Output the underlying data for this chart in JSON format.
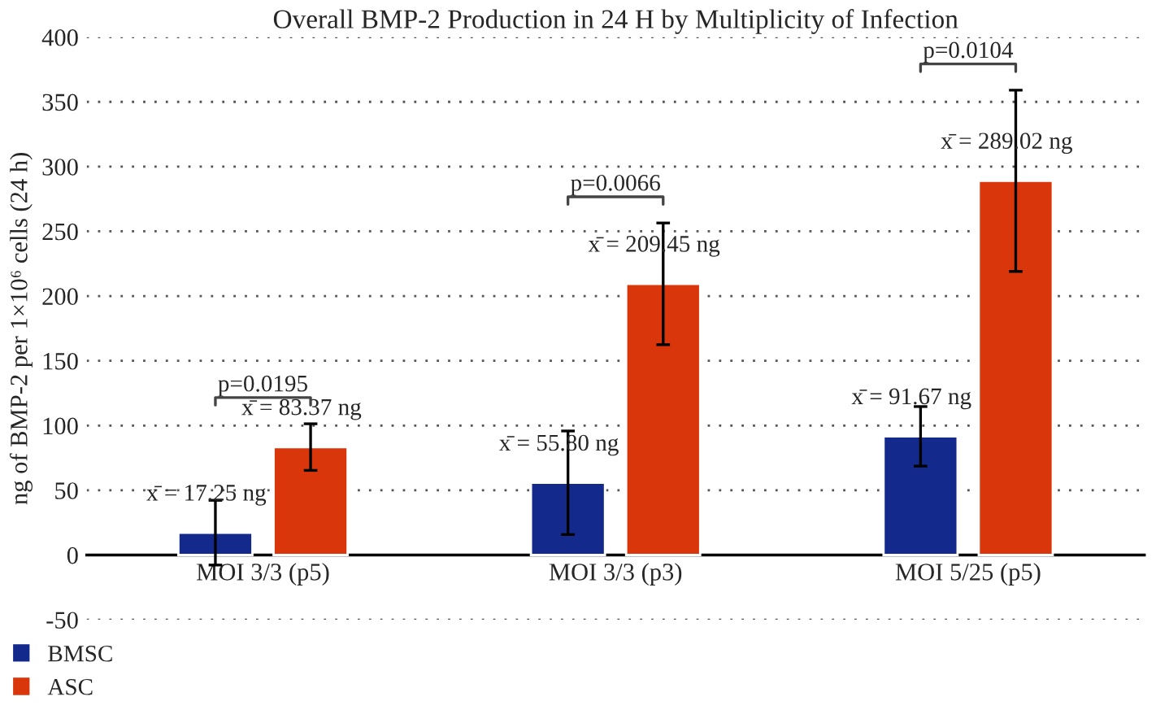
{
  "chart_data": {
    "type": "bar",
    "title": "Overall BMP-2 Production in 24 H by Multiplicity of Infection",
    "ylabel": "ng of BMP-2 per 1×10⁶ cells (24 h)",
    "categories": [
      "MOI 3/3 (p5)",
      "MOI 3/3 (p3)",
      "MOI 5/25 (p5)"
    ],
    "series": [
      {
        "name": "BMSC",
        "color": "#132a8c",
        "values": [
          17.25,
          55.8,
          91.67
        ],
        "errors": [
          25,
          40,
          23
        ],
        "value_labels": [
          "x̄ = 17.25 ng",
          "x̄ = 55.80 ng",
          "x̄ = 91.67 ng"
        ]
      },
      {
        "name": "ASC",
        "color": "#d9360b",
        "values": [
          83.37,
          209.45,
          289.02
        ],
        "errors": [
          18,
          47,
          70
        ],
        "value_labels": [
          "x̄ = 83.37 ng",
          "x̄ = 209.45 ng",
          "x̄ = 289.02 ng"
        ]
      }
    ],
    "annotations": [
      "p=0.0195",
      "p=0.0066",
      "p=0.0104"
    ],
    "ylim": [
      -50,
      400
    ],
    "yticks": [
      -50,
      0,
      50,
      100,
      150,
      200,
      250,
      300,
      350,
      400
    ],
    "grid": "y",
    "legend": "bottom left"
  }
}
